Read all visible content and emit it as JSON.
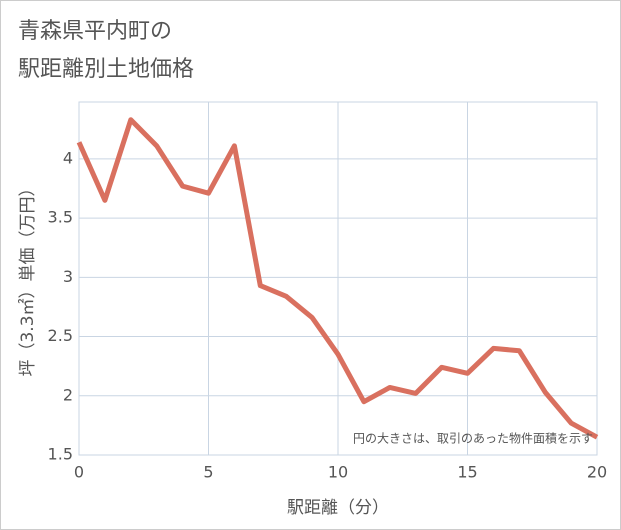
{
  "chart_data": {
    "type": "line",
    "title": [
      "青森県平内町の",
      "駅距離別土地価格"
    ],
    "xlabel": "駅距離（分）",
    "ylabel": "坪（3.3㎡）単価（万円）",
    "annotation": "円の大きさは、取引のあった物件面積を示す",
    "x": [
      0,
      1,
      2,
      3,
      4,
      5,
      6,
      7,
      8,
      9,
      10,
      11,
      12,
      13,
      14,
      15,
      16,
      17,
      18,
      19,
      20
    ],
    "series": [
      {
        "color": "#d9705f",
        "values": [
          4.14,
          3.65,
          4.33,
          4.11,
          3.77,
          3.71,
          4.11,
          2.93,
          2.84,
          2.66,
          2.35,
          1.95,
          2.07,
          2.02,
          2.24,
          2.19,
          2.4,
          2.38,
          2.03,
          1.77,
          1.65
        ]
      }
    ],
    "xlim": [
      0,
      20
    ],
    "xticks": [
      0,
      5,
      10,
      15,
      20
    ],
    "ylim": [
      1.5,
      4.48
    ],
    "yticks": [
      1.5,
      2,
      2.5,
      3,
      3.5,
      4
    ],
    "grid": true
  }
}
